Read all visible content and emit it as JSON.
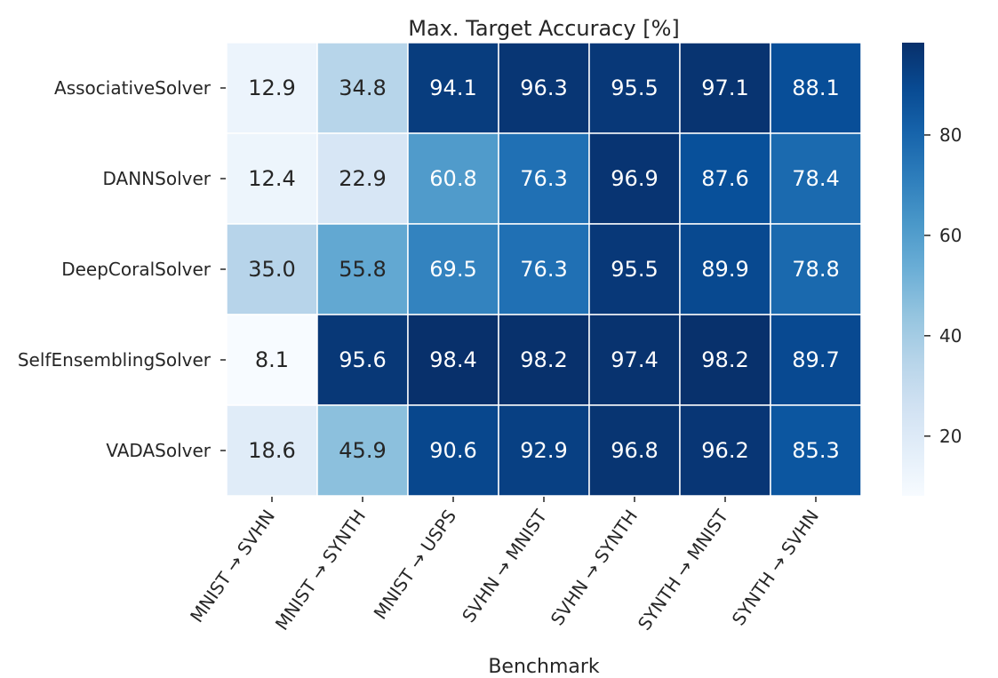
{
  "chart_data": {
    "type": "heatmap",
    "title": "Max. Target Accuracy [%]",
    "xlabel": "Benchmark",
    "ylabel": "",
    "rows": [
      "AssociativeSolver",
      "DANNSolver",
      "DeepCoralSolver",
      "SelfEnsemblingSolver",
      "VADASolver"
    ],
    "columns": [
      "MNIST → SVHN",
      "MNIST → SYNTH",
      "MNIST → USPS",
      "SVHN → MNIST",
      "SVHN → SYNTH",
      "SYNTH → MNIST",
      "SYNTH → SVHN"
    ],
    "values": [
      [
        12.9,
        34.8,
        94.1,
        96.3,
        95.5,
        97.1,
        88.1
      ],
      [
        12.4,
        22.9,
        60.8,
        76.3,
        96.9,
        87.6,
        78.4
      ],
      [
        35.0,
        55.8,
        69.5,
        76.3,
        95.5,
        89.9,
        78.8
      ],
      [
        8.1,
        95.6,
        98.4,
        98.2,
        97.4,
        98.2,
        89.7
      ],
      [
        18.6,
        45.9,
        90.6,
        92.9,
        96.8,
        96.2,
        85.3
      ]
    ],
    "colormap": "Blues",
    "color_range": [
      8.1,
      98.4
    ],
    "colorbar_ticks": [
      20,
      40,
      60,
      80
    ]
  }
}
